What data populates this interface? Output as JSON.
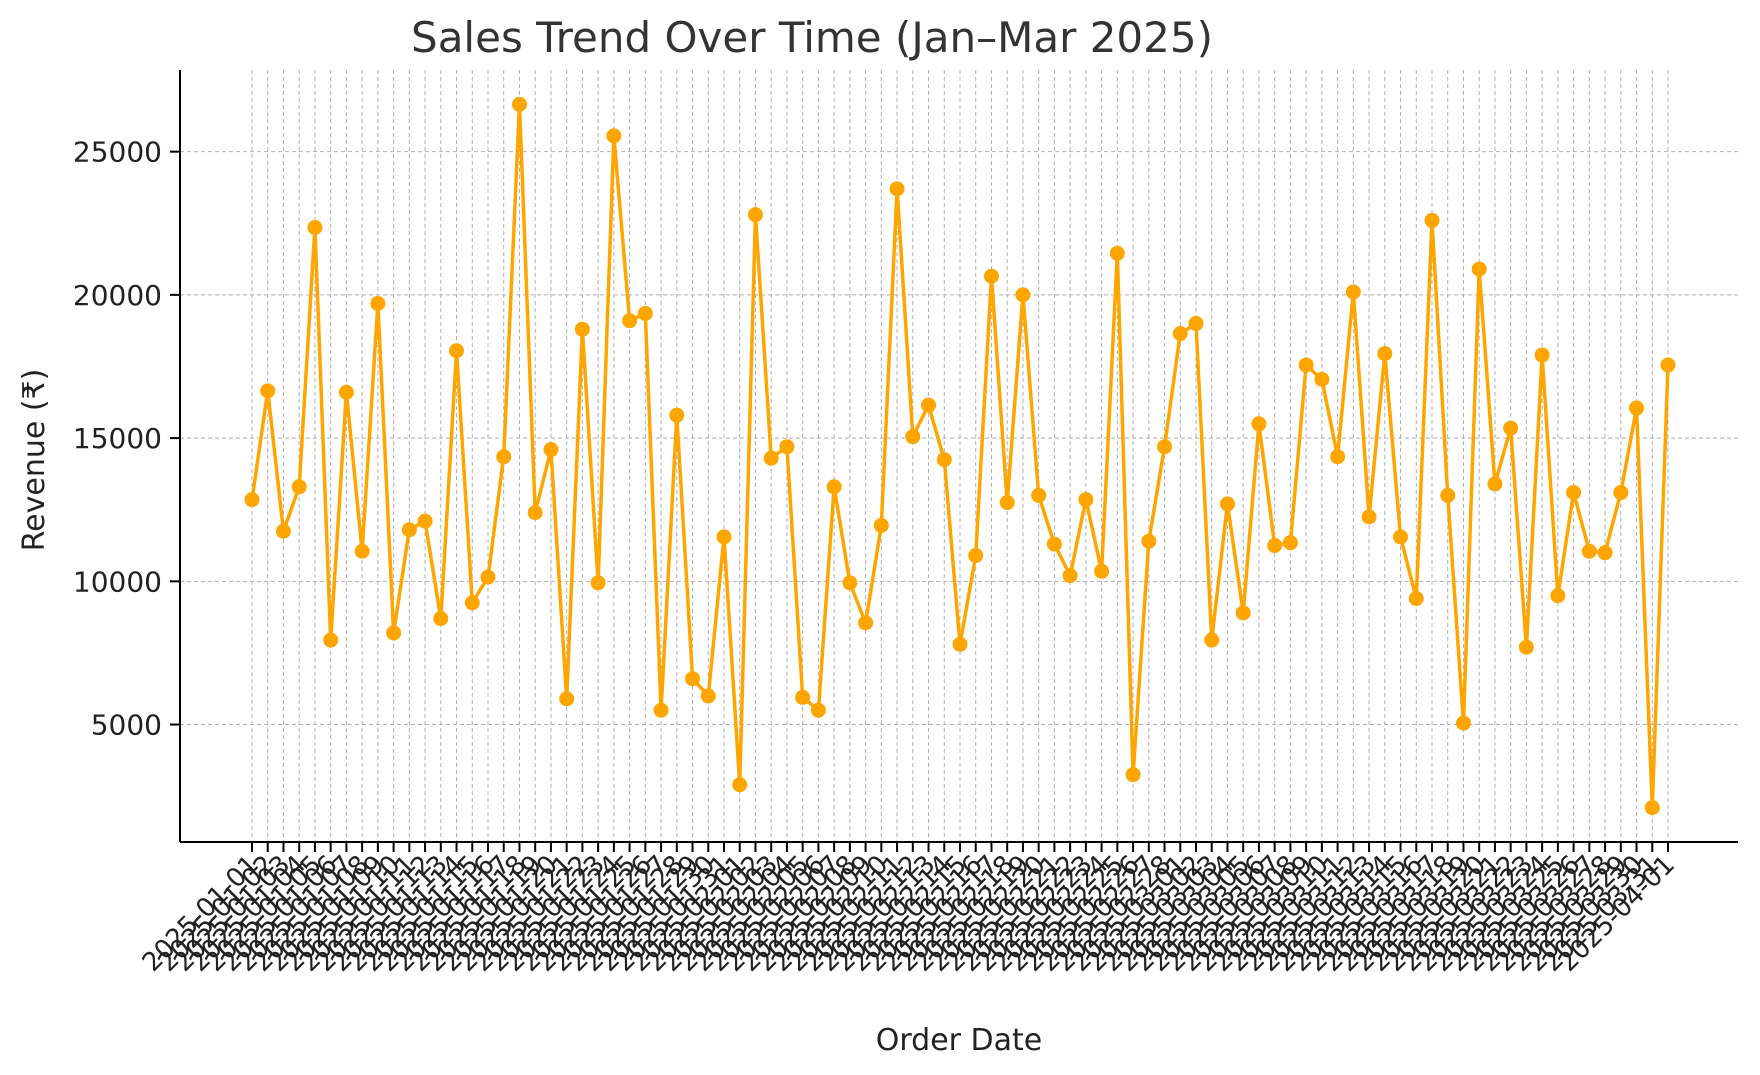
{
  "chart_data": {
    "type": "line",
    "title": "Sales Trend Over Time (Jan–Mar 2025)",
    "xlabel": "Order Date",
    "ylabel": "Revenue (₹)",
    "x": [
      "2025-01-01",
      "2025-01-02",
      "2025-01-03",
      "2025-01-04",
      "2025-01-05",
      "2025-01-06",
      "2025-01-07",
      "2025-01-08",
      "2025-01-09",
      "2025-01-10",
      "2025-01-11",
      "2025-01-12",
      "2025-01-13",
      "2025-01-14",
      "2025-01-15",
      "2025-01-16",
      "2025-01-17",
      "2025-01-18",
      "2025-01-19",
      "2025-01-20",
      "2025-01-21",
      "2025-01-22",
      "2025-01-23",
      "2025-01-24",
      "2025-01-25",
      "2025-01-26",
      "2025-01-27",
      "2025-01-28",
      "2025-01-29",
      "2025-01-30",
      "2025-01-31",
      "2025-02-01",
      "2025-02-02",
      "2025-02-03",
      "2025-02-04",
      "2025-02-05",
      "2025-02-06",
      "2025-02-07",
      "2025-02-08",
      "2025-02-09",
      "2025-02-10",
      "2025-02-11",
      "2025-02-12",
      "2025-02-13",
      "2025-02-14",
      "2025-02-15",
      "2025-02-16",
      "2025-02-17",
      "2025-02-18",
      "2025-02-19",
      "2025-02-20",
      "2025-02-21",
      "2025-02-22",
      "2025-02-23",
      "2025-02-24",
      "2025-02-25",
      "2025-02-26",
      "2025-02-27",
      "2025-02-28",
      "2025-03-01",
      "2025-03-02",
      "2025-03-03",
      "2025-03-04",
      "2025-03-05",
      "2025-03-06",
      "2025-03-07",
      "2025-03-08",
      "2025-03-09",
      "2025-03-10",
      "2025-03-11",
      "2025-03-12",
      "2025-03-13",
      "2025-03-14",
      "2025-03-15",
      "2025-03-16",
      "2025-03-17",
      "2025-03-18",
      "2025-03-19",
      "2025-03-20",
      "2025-03-21",
      "2025-03-22",
      "2025-03-23",
      "2025-03-24",
      "2025-03-25",
      "2025-03-26",
      "2025-03-27",
      "2025-03-28",
      "2025-03-29",
      "2025-03-30",
      "2025-03-31",
      "2025-04-01"
    ],
    "series": [
      {
        "color": "#FFA500",
        "values": [
          12850,
          16650,
          11750,
          13300,
          22350,
          7950,
          16600,
          11050,
          19700,
          8200,
          11800,
          12100,
          8700,
          18050,
          9250,
          10150,
          14350,
          26650,
          12400,
          14600,
          5900,
          18800,
          9950,
          25550,
          19100,
          19350,
          5500,
          15800,
          6600,
          6000,
          11550,
          2900,
          22800,
          14300,
          14700,
          5950,
          5500,
          13300,
          9950,
          8550,
          11950,
          23700,
          15050,
          16150,
          14250,
          7800,
          10900,
          20650,
          12750,
          20000,
          13000,
          11300,
          10200,
          12850,
          10350,
          21450,
          3250,
          11400,
          14700,
          18650,
          19000,
          7950,
          12700,
          8900,
          15500,
          11250,
          11350,
          17550,
          17050,
          14350,
          20100,
          12250,
          17950,
          11550,
          9400,
          22600,
          13000,
          5050,
          20900,
          13400,
          15350,
          7700,
          17900,
          9500,
          13100,
          11050,
          11000,
          13100,
          16050,
          2100,
          17550
        ]
      }
    ],
    "ylim": [
      900,
      27850
    ],
    "yticks": [
      "5000",
      "10000",
      "15000",
      "20000",
      "25000"
    ],
    "grid": true,
    "legend": "none"
  }
}
